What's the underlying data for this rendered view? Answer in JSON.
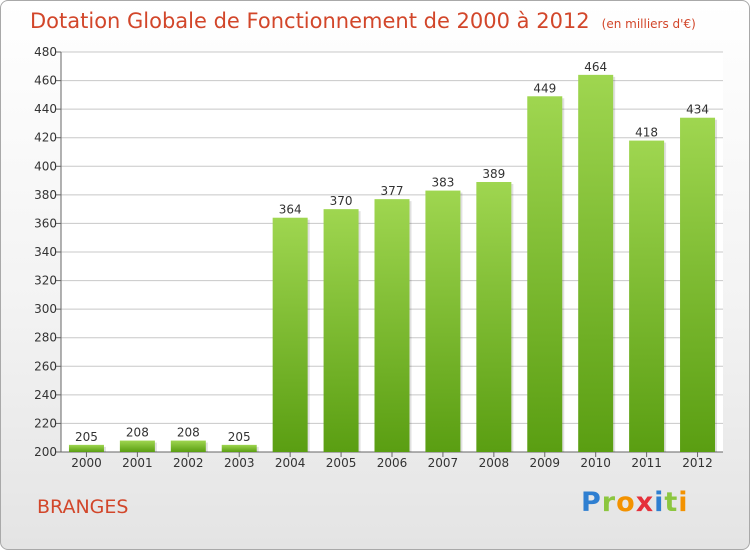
{
  "title": "Dotation Globale de Fonctionnement de 2000 à 2012",
  "unit_note": "(en milliers d'€)",
  "commune": "BRANGES",
  "logo": {
    "letters": [
      "P",
      "r",
      "o",
      "x",
      "i",
      "t",
      "i"
    ],
    "colors": [
      "#2f7fd1",
      "#8cc63f",
      "#f39200",
      "#e5313b",
      "#2f7fd1",
      "#8cc63f",
      "#f39200"
    ]
  },
  "colors": {
    "title": "#d2462a",
    "bar_top": "#9fd650",
    "bar_bottom": "#5a9e12",
    "grid": "#c8c8c8"
  },
  "chart_data": {
    "type": "bar",
    "title": "Dotation Globale de Fonctionnement de 2000 à 2012",
    "subtitle": "(en milliers d'€)",
    "categories": [
      "2000",
      "2001",
      "2002",
      "2003",
      "2004",
      "2005",
      "2006",
      "2007",
      "2008",
      "2009",
      "2010",
      "2011",
      "2012"
    ],
    "values": [
      205,
      208,
      208,
      205,
      364,
      370,
      377,
      383,
      389,
      449,
      464,
      418,
      434
    ],
    "ylim": [
      200,
      480
    ],
    "yticks": [
      200,
      220,
      240,
      260,
      280,
      300,
      320,
      340,
      360,
      380,
      400,
      420,
      440,
      460,
      480
    ],
    "grid": true
  }
}
